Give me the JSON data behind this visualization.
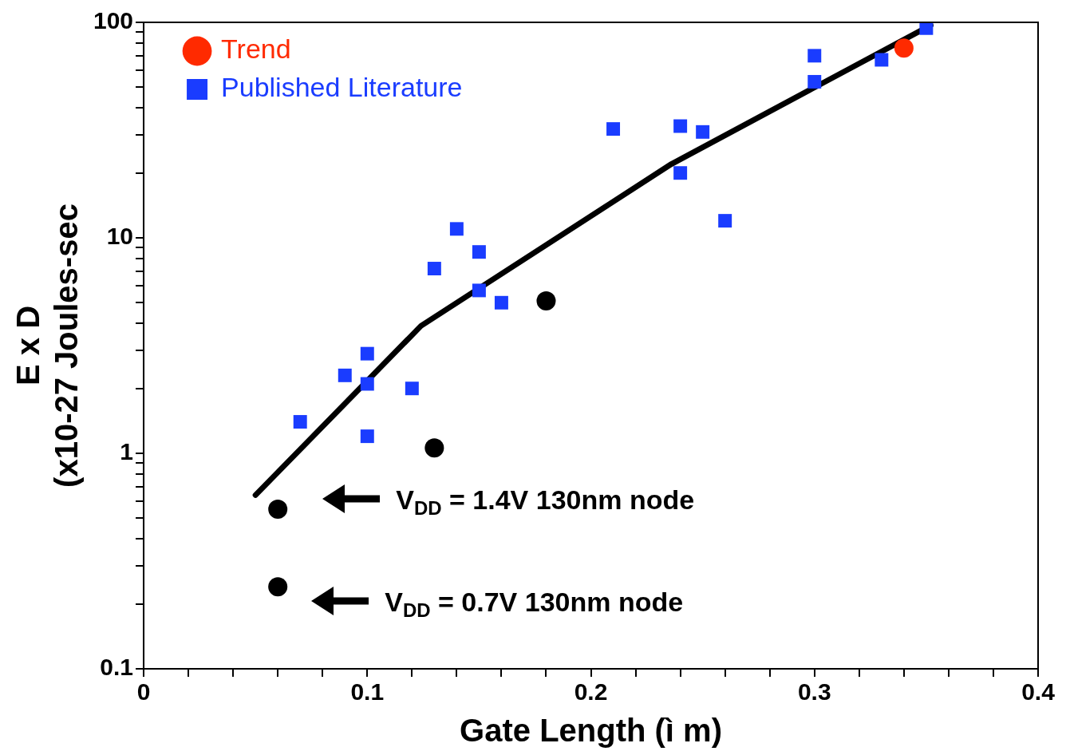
{
  "chart_data": {
    "type": "scatter",
    "xlabel": "Gate Length (ì m)",
    "ylabel": "E x D\n(x10-27 Joules-sec",
    "log": "y",
    "xlim": [
      0,
      0.4
    ],
    "ylim": [
      0.1,
      100
    ],
    "xticks": [
      0,
      {
        "value": 0.02,
        "label": null
      },
      {
        "value": 0.04,
        "label": null
      },
      {
        "value": 0.06,
        "label": null
      },
      {
        "value": 0.08,
        "label": null
      },
      0.1,
      {
        "value": 0.12,
        "label": null
      },
      {
        "value": 0.14,
        "label": null
      },
      {
        "value": 0.16,
        "label": null
      },
      {
        "value": 0.18,
        "label": null
      },
      0.2,
      {
        "value": 0.22,
        "label": null
      },
      {
        "value": 0.24,
        "label": null
      },
      {
        "value": 0.26,
        "label": null
      },
      {
        "value": 0.28,
        "label": null
      },
      0.3,
      {
        "value": 0.32,
        "label": null
      },
      {
        "value": 0.34,
        "label": null
      },
      {
        "value": 0.36,
        "label": null
      },
      {
        "value": 0.38,
        "label": null
      },
      0.4
    ],
    "yticks": [
      0.1,
      {
        "value": 0.2,
        "label": null
      },
      {
        "value": 0.3,
        "label": null
      },
      {
        "value": 0.4,
        "label": null
      },
      {
        "value": 0.5,
        "label": null
      },
      {
        "value": 0.6,
        "label": null
      },
      {
        "value": 0.7,
        "label": null
      },
      {
        "value": 0.8,
        "label": null
      },
      {
        "value": 0.9,
        "label": null
      },
      1,
      {
        "value": 2,
        "label": null
      },
      {
        "value": 3,
        "label": null
      },
      {
        "value": 4,
        "label": null
      },
      {
        "value": 5,
        "label": null
      },
      {
        "value": 6,
        "label": null
      },
      {
        "value": 7,
        "label": null
      },
      {
        "value": 8,
        "label": null
      },
      {
        "value": 9,
        "label": null
      },
      10,
      {
        "value": 20,
        "label": null
      },
      {
        "value": 30,
        "label": null
      },
      {
        "value": 40,
        "label": null
      },
      {
        "value": 50,
        "label": null
      },
      {
        "value": 60,
        "label": null
      },
      {
        "value": 70,
        "label": null
      },
      {
        "value": 80,
        "label": null
      },
      {
        "value": 90,
        "label": null
      },
      100
    ],
    "grid": false,
    "legend": "top left",
    "series": [
      {
        "name": "Trend",
        "color": "#ff2a00",
        "marker": "circle",
        "x": [
          0.34
        ],
        "values": [
          76
        ]
      },
      {
        "name": "Published Literature",
        "color": "#1a3cff",
        "marker": "square",
        "x": [
          0.07,
          0.09,
          0.1,
          0.1,
          0.1,
          0.12,
          0.13,
          0.14,
          0.15,
          0.15,
          0.16,
          0.21,
          0.24,
          0.24,
          0.25,
          0.26,
          0.3,
          0.3,
          0.33,
          0.35
        ],
        "values": [
          1.4,
          2.3,
          2.9,
          2.1,
          1.2,
          2.0,
          7.2,
          11,
          8.6,
          5.7,
          5.0,
          32,
          20,
          33,
          31,
          12,
          70,
          53,
          67,
          94
        ]
      },
      {
        "color": "#000000",
        "marker": "circle",
        "x": [
          0.06,
          0.06,
          0.13,
          0.18
        ],
        "values": [
          0.55,
          0.24,
          1.06,
          5.1
        ]
      },
      {
        "type": "line",
        "color": "#000000",
        "marker": "none",
        "x": [
          0.05,
          0.124,
          0.236,
          0.352
        ],
        "values": [
          0.64,
          3.9,
          22,
          97
        ]
      }
    ],
    "annotations": [
      "V$_{DD}$ = 1.4V 130nm node",
      "V$_{DD}$ = 0.7V 130nm node"
    ]
  }
}
